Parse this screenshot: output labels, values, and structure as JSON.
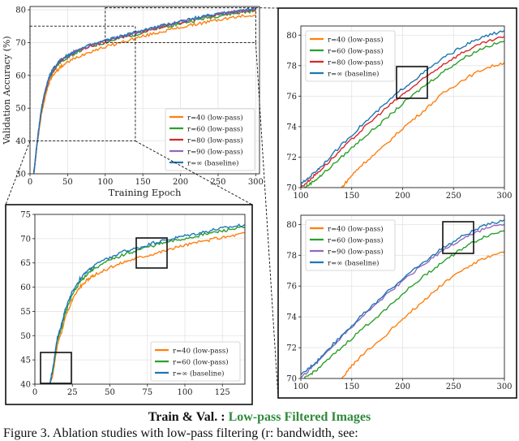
{
  "colors": {
    "r40": "#ff7f0e",
    "r60": "#2ca02c",
    "r80": "#d62728",
    "r90": "#9467bd",
    "rinf": "#1f77b4"
  },
  "caption": {
    "title_prefix": "Train & Val. :",
    "title_highlight": "Low-pass Filtered Images",
    "text": "Figure 3.  Ablation studies with low-pass filtering (r: bandwidth, see:"
  },
  "chart_data": [
    {
      "id": "main",
      "type": "line",
      "xlabel": "Training Epoch",
      "ylabel": "Validation Accuracy (%)",
      "xlim": [
        0,
        305
      ],
      "ylim": [
        30,
        81
      ],
      "xticks": [
        0,
        50,
        100,
        150,
        200,
        250,
        300
      ],
      "yticks": [
        30,
        40,
        50,
        60,
        70,
        80
      ],
      "grid": true,
      "legend_position": "lower-right",
      "series": [
        {
          "name": "r=40 (low-pass)",
          "key": "r40",
          "x": [
            5,
            10,
            15,
            20,
            25,
            30,
            40,
            50,
            60,
            80,
            100,
            120,
            140,
            160,
            180,
            200,
            220,
            240,
            260,
            280,
            300
          ],
          "y": [
            30,
            40,
            48,
            53.5,
            57.5,
            60,
            62.5,
            64,
            65.3,
            67.3,
            68.7,
            70,
            71.3,
            72.5,
            73.6,
            74.6,
            75.6,
            76.5,
            77.3,
            78,
            78.5
          ]
        },
        {
          "name": "r=60 (low-pass)",
          "key": "r60",
          "x": [
            5,
            10,
            15,
            20,
            25,
            30,
            40,
            50,
            60,
            80,
            100,
            120,
            140,
            160,
            180,
            200,
            220,
            240,
            260,
            280,
            300
          ],
          "y": [
            30,
            40.5,
            49,
            54.5,
            58.5,
            61,
            64,
            65.5,
            66.8,
            68.7,
            70,
            71.3,
            72.5,
            73.7,
            74.8,
            75.8,
            76.8,
            77.7,
            78.5,
            79.1,
            79.7
          ]
        },
        {
          "name": "r=80 (low-pass)",
          "key": "r80",
          "x": [
            5,
            10,
            15,
            20,
            25,
            30,
            40,
            50,
            60,
            80,
            100,
            120,
            140,
            160,
            180,
            200,
            220,
            240,
            260,
            280,
            300
          ],
          "y": [
            30,
            40.5,
            49.3,
            54.8,
            58.8,
            61.4,
            64.3,
            65.8,
            67.2,
            69,
            70.3,
            71.6,
            72.9,
            74,
            75.1,
            76.2,
            77.2,
            78.1,
            78.9,
            79.5,
            80
          ]
        },
        {
          "name": "r=90 (low-pass)",
          "key": "r90",
          "x": [
            5,
            10,
            15,
            20,
            25,
            30,
            40,
            50,
            60,
            80,
            100,
            120,
            140,
            160,
            180,
            200,
            220,
            240,
            260,
            280,
            300
          ],
          "y": [
            30,
            40.5,
            49.5,
            55,
            59,
            61.6,
            64.5,
            66,
            67.3,
            69.1,
            70.5,
            71.8,
            73,
            74.2,
            75.3,
            76.4,
            77.4,
            78.3,
            79.1,
            79.7,
            80.1
          ]
        },
        {
          "name": "r=∞ (baseline)",
          "key": "rinf",
          "x": [
            5,
            10,
            15,
            20,
            25,
            30,
            40,
            50,
            60,
            80,
            100,
            120,
            140,
            160,
            180,
            200,
            220,
            240,
            260,
            280,
            300
          ],
          "y": [
            30,
            40.6,
            49.6,
            55.1,
            59.1,
            61.7,
            64.6,
            66.1,
            67.4,
            69.2,
            70.6,
            71.9,
            73.1,
            74.3,
            75.4,
            76.5,
            77.5,
            78.4,
            79.2,
            79.8,
            80.3
          ]
        }
      ]
    },
    {
      "id": "zoom-top-right",
      "type": "line",
      "xlim": [
        100,
        300
      ],
      "ylim": [
        70,
        80.6
      ],
      "xticks": [
        100,
        150,
        200,
        250,
        300
      ],
      "yticks": [
        70,
        72,
        74,
        76,
        78,
        80
      ],
      "grid": true,
      "legend_position": "upper-left",
      "series": [
        {
          "name": "r=40 (low-pass)",
          "key": "r40",
          "x": [
            140,
            150,
            160,
            180,
            200,
            220,
            240,
            260,
            280,
            300
          ],
          "y": [
            70,
            70.8,
            71.5,
            72.6,
            73.9,
            75,
            76.2,
            77.1,
            77.8,
            78.2
          ]
        },
        {
          "name": "r=60 (low-pass)",
          "key": "r60",
          "x": [
            100,
            110,
            120,
            140,
            160,
            180,
            200,
            220,
            240,
            260,
            280,
            300
          ],
          "y": [
            69.8,
            70.3,
            70.8,
            72,
            73.2,
            74.3,
            75.5,
            76.6,
            77.6,
            78.5,
            79.2,
            79.6
          ]
        },
        {
          "name": "r=80 (low-pass)",
          "key": "r80",
          "x": [
            100,
            110,
            120,
            140,
            160,
            180,
            200,
            220,
            240,
            260,
            280,
            300
          ],
          "y": [
            70,
            70.6,
            71.2,
            72.5,
            73.8,
            75,
            76.1,
            77.1,
            78.1,
            78.9,
            79.5,
            79.9
          ]
        },
        {
          "name": "r=∞ (baseline)",
          "key": "rinf",
          "x": [
            100,
            110,
            120,
            140,
            160,
            180,
            200,
            220,
            240,
            260,
            280,
            300
          ],
          "y": [
            70.2,
            70.8,
            71.4,
            72.8,
            74.1,
            75.3,
            76.5,
            77.5,
            78.5,
            79.3,
            79.9,
            80.3
          ]
        }
      ]
    },
    {
      "id": "zoom-bottom-right",
      "type": "line",
      "xlim": [
        100,
        300
      ],
      "ylim": [
        70,
        80.6
      ],
      "xticks": [
        100,
        150,
        200,
        250,
        300
      ],
      "yticks": [
        70,
        72,
        74,
        76,
        78,
        80
      ],
      "grid": true,
      "legend_position": "upper-left",
      "series": [
        {
          "name": "r=40 (low-pass)",
          "key": "r40",
          "x": [
            140,
            150,
            160,
            180,
            200,
            220,
            240,
            260,
            280,
            300
          ],
          "y": [
            70,
            70.8,
            71.5,
            72.6,
            73.9,
            75,
            76.2,
            77.1,
            77.8,
            78.2
          ]
        },
        {
          "name": "r=60 (low-pass)",
          "key": "r60",
          "x": [
            100,
            110,
            120,
            140,
            160,
            180,
            200,
            220,
            240,
            260,
            280,
            300
          ],
          "y": [
            69.8,
            70.3,
            70.8,
            72,
            73.2,
            74.3,
            75.5,
            76.6,
            77.6,
            78.5,
            79.2,
            79.6
          ]
        },
        {
          "name": "r=90 (low-pass)",
          "key": "r90",
          "x": [
            100,
            110,
            120,
            140,
            160,
            180,
            200,
            220,
            240,
            260,
            280,
            300
          ],
          "y": [
            70,
            70.7,
            71.3,
            72.7,
            74,
            75.2,
            76.3,
            77.4,
            78.3,
            79.1,
            79.7,
            80
          ]
        },
        {
          "name": "r=∞ (baseline)",
          "key": "rinf",
          "x": [
            100,
            110,
            120,
            140,
            160,
            180,
            200,
            220,
            240,
            260,
            280,
            300
          ],
          "y": [
            70.2,
            70.8,
            71.4,
            72.8,
            74.1,
            75.3,
            76.5,
            77.5,
            78.5,
            79.3,
            79.9,
            80.3
          ]
        }
      ]
    },
    {
      "id": "zoom-bottom-left",
      "type": "line",
      "xlim": [
        0,
        140
      ],
      "ylim": [
        40,
        75
      ],
      "xticks": [
        0,
        25,
        50,
        75,
        100,
        125
      ],
      "yticks": [
        40,
        45,
        50,
        55,
        60,
        65,
        70,
        75
      ],
      "grid": true,
      "legend_position": "lower-right",
      "series": [
        {
          "name": "r=40 (low-pass)",
          "key": "r40",
          "x": [
            10,
            12,
            15,
            18,
            20,
            25,
            30,
            35,
            40,
            50,
            60,
            70,
            80,
            90,
            100,
            110,
            120,
            130,
            140
          ],
          "y": [
            40,
            42,
            48,
            51,
            53.5,
            57.5,
            60,
            61.5,
            62.5,
            64,
            65.3,
            66.2,
            67,
            67.8,
            68.7,
            69.3,
            70,
            70.5,
            71.2
          ]
        },
        {
          "name": "r=60 (low-pass)",
          "key": "r60",
          "x": [
            10,
            12,
            15,
            18,
            20,
            25,
            30,
            35,
            40,
            50,
            60,
            70,
            80,
            90,
            100,
            110,
            120,
            130,
            140
          ],
          "y": [
            40,
            43,
            49,
            52,
            54.5,
            58.5,
            61,
            62.8,
            64,
            65.5,
            66.8,
            67.8,
            68.7,
            69.4,
            70,
            70.7,
            71.3,
            71.9,
            72.3
          ]
        },
        {
          "name": "r=∞ (baseline)",
          "key": "rinf",
          "x": [
            10,
            12,
            15,
            18,
            20,
            25,
            30,
            35,
            40,
            50,
            60,
            70,
            80,
            90,
            100,
            110,
            120,
            130,
            140
          ],
          "y": [
            40,
            43.2,
            49.6,
            52.5,
            55.1,
            59.1,
            61.7,
            63.3,
            64.6,
            66.1,
            67.4,
            68.2,
            69.2,
            69.9,
            70.6,
            71.2,
            71.9,
            72.4,
            72.9
          ]
        }
      ]
    }
  ]
}
